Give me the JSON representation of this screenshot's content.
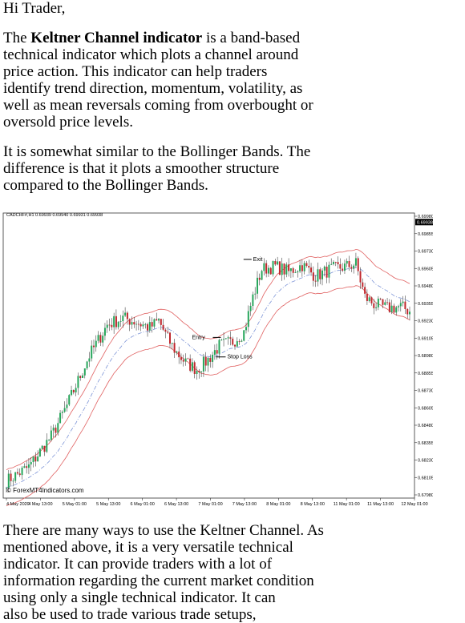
{
  "greeting": "Hi Trader,",
  "para1": {
    "prefix": "The ",
    "bold": "Keltner Channel indicator",
    "l1": " is a band-based",
    "l2": "technical indicator which plots a channel around",
    "l3": "price action. This indicator can help traders",
    "l4": "identify trend direction, momentum, volatility, as",
    "l5": "well as mean reversals coming from overbought or",
    "l6": "oversold price levels."
  },
  "para2": {
    "l1": "It is somewhat similar to the Bollinger Bands. The",
    "l2": "difference is that it plots a smoother structure",
    "l3": "compared to the Bollinger Bands."
  },
  "para3": {
    "l1": "There are many ways to use the Keltner Channel. As",
    "l2": "mentioned above, it is a very versatile technical",
    "l3": "indicator. It can provide traders with a lot of",
    "l4": "information regarding the current market condition",
    "l5": "using only a single technical indicator. It can",
    "l6": "also be used to trade various trade setups,"
  },
  "chart_data": {
    "type": "candlestick",
    "header": "CADCHF#,H1  0.69939 0.69940 0.69931 0.69938",
    "watermark": "© ForexMT4Indicators.com",
    "y_ticks": [
      "0.69980",
      "0.69855",
      "0.69730",
      "0.69605",
      "0.69480",
      "0.69355",
      "0.69230",
      "0.69105",
      "0.68980",
      "0.68855",
      "0.68730",
      "0.68605",
      "0.68480",
      "0.68355",
      "0.68230",
      "0.68105",
      "0.67980"
    ],
    "y_range": [
      0.6798,
      0.6998
    ],
    "current_price": "0.69938",
    "x_ticks": [
      "4 May 2020",
      "4 May 13:00",
      "5 May 01:00",
      "5 May 13:00",
      "6 May 01:00",
      "6 May 13:00",
      "7 May 01:00",
      "7 May 13:00",
      "8 May 01:00",
      "8 May 13:00",
      "11 May 01:00",
      "11 May 13:00",
      "12 May 01:00"
    ],
    "annotations": [
      "Exit",
      "Entry",
      "Stop Loss"
    ],
    "colors": {
      "bull": "#26a65b",
      "bear": "#c0272d",
      "band": "#e06060",
      "mid": "#7b93d6"
    },
    "path_anchors": [
      [
        0,
        0.6808
      ],
      [
        10,
        0.6818
      ],
      [
        20,
        0.684
      ],
      [
        27,
        0.6862
      ],
      [
        37,
        0.6898
      ],
      [
        45,
        0.692
      ],
      [
        52,
        0.6925
      ],
      [
        58,
        0.6922
      ],
      [
        64,
        0.6918
      ],
      [
        68,
        0.6923
      ],
      [
        72,
        0.691
      ],
      [
        76,
        0.69
      ],
      [
        80,
        0.6893
      ],
      [
        85,
        0.6888
      ],
      [
        90,
        0.6895
      ],
      [
        95,
        0.6905
      ],
      [
        101,
        0.6908
      ],
      [
        106,
        0.6915
      ],
      [
        110,
        0.694
      ],
      [
        114,
        0.696
      ],
      [
        120,
        0.6962
      ],
      [
        126,
        0.6958
      ],
      [
        132,
        0.6963
      ],
      [
        138,
        0.6955
      ],
      [
        145,
        0.696
      ],
      [
        152,
        0.6962
      ],
      [
        156,
        0.6964
      ],
      [
        160,
        0.694
      ],
      [
        164,
        0.6935
      ],
      [
        170,
        0.6932
      ],
      [
        176,
        0.6933
      ],
      [
        180,
        0.693
      ]
    ],
    "bar_count": 181
  }
}
